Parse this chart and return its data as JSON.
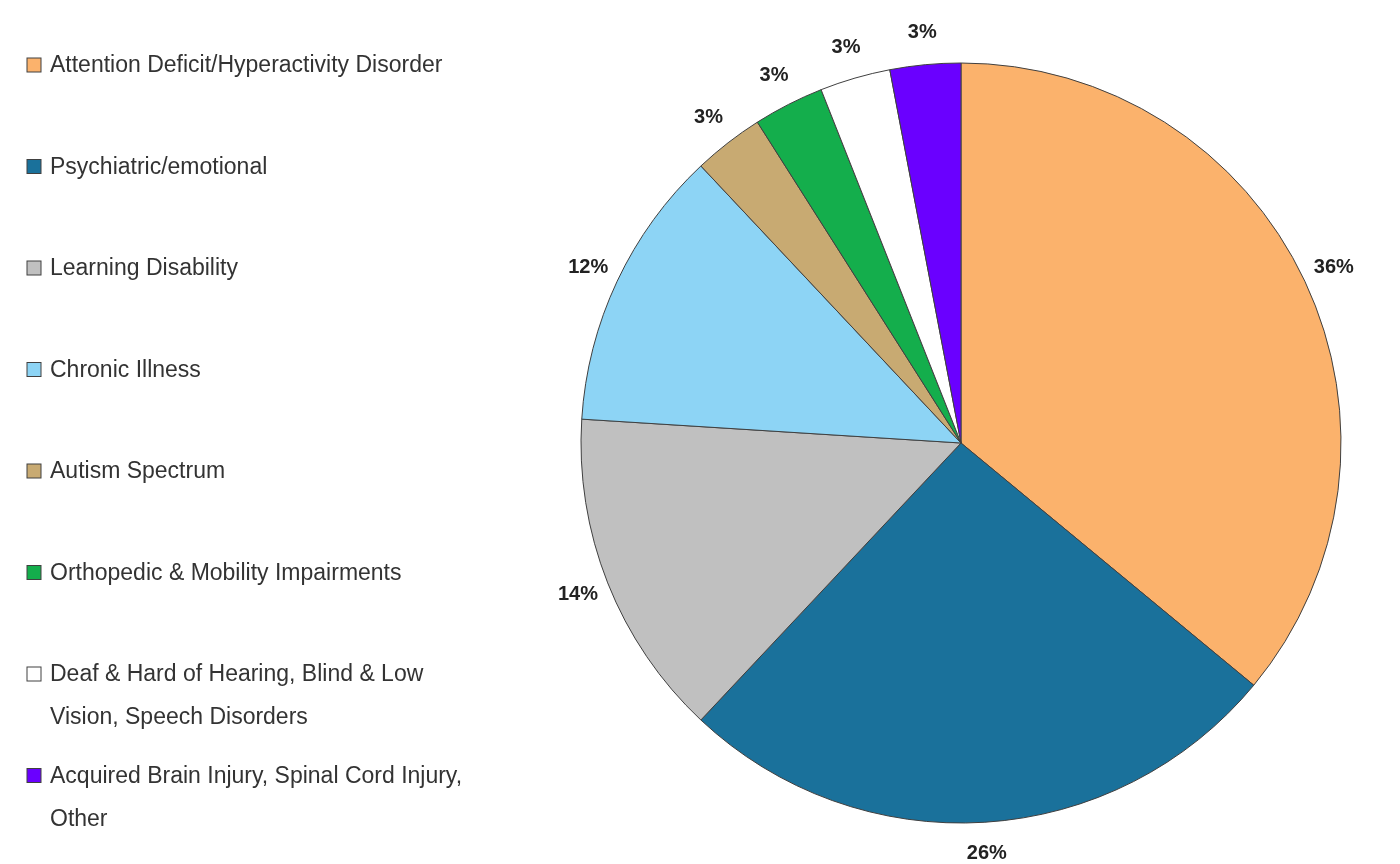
{
  "chart_data": {
    "type": "pie",
    "categories": [
      "Attention Deficit/Hyperactivity Disorder",
      "Psychiatric/emotional",
      "Learning Disability",
      "Chronic Illness",
      "Autism Spectrum",
      "Orthopedic & Mobility Impairments",
      "Deaf & Hard of Hearing, Blind & Low Vision, Speech Disorders",
      "Acquired Brain Injury, Spinal Cord Injury, Other"
    ],
    "values": [
      36,
      26,
      14,
      12,
      3,
      3,
      3,
      3
    ],
    "value_labels": [
      "36%",
      "26%",
      "14%",
      "12%",
      "3%",
      "3%",
      "3%",
      "3%"
    ],
    "colors": [
      "#fbb26c",
      "#1a719b",
      "#c0c0c0",
      "#8dd4f5",
      "#c8aa72",
      "#14ae4c",
      "#ffffff",
      "#6a00ff"
    ],
    "legend": "left"
  }
}
